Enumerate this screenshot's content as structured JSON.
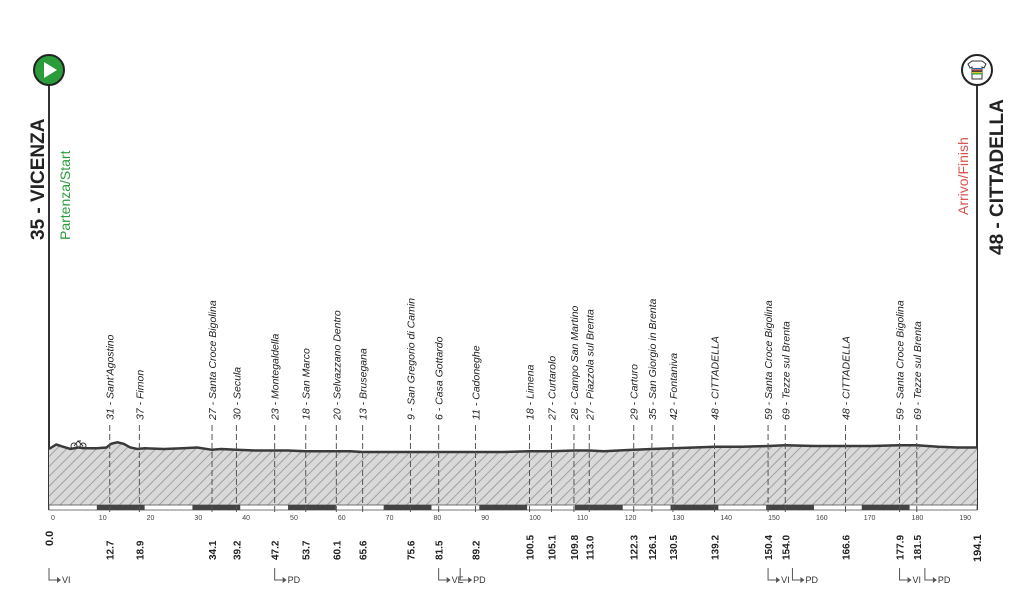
{
  "start": {
    "elevation_label": "35 - VICENZA",
    "caption": "Partenza/Start",
    "distance": "0.0",
    "color": "#2a9d3a"
  },
  "finish": {
    "elevation_label": "48 - CITTADELLA",
    "caption": "Arrivo/Finish",
    "distance": "194.1",
    "color": "#d9534f"
  },
  "chart_data": {
    "type": "area",
    "title": "",
    "xlabel": "",
    "ylabel": "",
    "xlim": [
      0,
      194.1
    ],
    "x_ticks": [
      0,
      10,
      20,
      30,
      40,
      50,
      60,
      70,
      80,
      90,
      100,
      110,
      120,
      130,
      140,
      150,
      160,
      170,
      180,
      190
    ],
    "profile": {
      "x": [
        0,
        1.5,
        3.0,
        4.5,
        6.0,
        8.0,
        10.0,
        12.0,
        13.0,
        14.3,
        15.6,
        17.0,
        18.5,
        20,
        24,
        28,
        31,
        34.1,
        36,
        39.2,
        43,
        47.2,
        50,
        53.7,
        57,
        60.1,
        63,
        65.6,
        70,
        75.6,
        80,
        85,
        89.2,
        95,
        100.5,
        105.1,
        109.8,
        113.0,
        116,
        122.3,
        126.1,
        130.5,
        135,
        139.2,
        145,
        150.4,
        154.0,
        160,
        166.6,
        172,
        177.9,
        181.5,
        186,
        190,
        194.1
      ],
      "y": [
        38,
        44,
        41,
        38,
        40,
        39,
        39,
        40,
        45,
        47,
        45,
        40,
        38,
        39,
        38,
        39,
        40,
        37,
        38,
        37,
        36,
        36,
        36,
        35,
        35,
        35,
        35,
        34,
        34,
        34,
        34,
        34,
        34,
        34,
        35,
        35,
        36,
        36,
        35,
        37,
        38,
        39,
        40,
        41,
        41,
        42,
        43,
        42,
        42,
        42,
        43,
        43,
        41,
        40,
        40
      ]
    },
    "waypoints": [
      {
        "x": 12.7,
        "label": "31 - Sant'Agostino",
        "dist": "12.7"
      },
      {
        "x": 18.9,
        "label": "37 - Fimon",
        "dist": "18.9"
      },
      {
        "x": 34.1,
        "label": "27 - Santa Croce Bigolina",
        "dist": "34.1"
      },
      {
        "x": 39.2,
        "label": "30 - Secula",
        "dist": "39.2"
      },
      {
        "x": 47.2,
        "label": "23 - Montegaldella",
        "dist": "47.2"
      },
      {
        "x": 53.7,
        "label": "18 - San Marco",
        "dist": "53.7"
      },
      {
        "x": 60.1,
        "label": "20 - Selvazzano Dentro",
        "dist": "60.1"
      },
      {
        "x": 65.6,
        "label": "13 - Brusegana",
        "dist": "65.6"
      },
      {
        "x": 75.6,
        "label": "9 - San Gregorio di Camin",
        "dist": "75.6"
      },
      {
        "x": 81.5,
        "label": "6 - Casa Gottardo",
        "dist": "81.5"
      },
      {
        "x": 89.2,
        "label": "11 - Cadoneghe",
        "dist": "89.2"
      },
      {
        "x": 100.5,
        "label": "18 - Limena",
        "dist": "100.5"
      },
      {
        "x": 105.1,
        "label": "27 - Curtarolo",
        "dist": "105.1"
      },
      {
        "x": 109.8,
        "label": "28 - Campo San Martino",
        "dist": "109.8"
      },
      {
        "x": 113.0,
        "label": "27 - Piazzola sul Brenta",
        "dist": "113.0"
      },
      {
        "x": 122.3,
        "label": "29 - Carturo",
        "dist": "122.3"
      },
      {
        "x": 126.1,
        "label": "35 - San Giorgio in Brenta",
        "dist": "126.1"
      },
      {
        "x": 130.5,
        "label": "42 - Fontaniva",
        "dist": "130.5"
      },
      {
        "x": 139.2,
        "label": "48 - CITTADELLA",
        "dist": "139.2"
      },
      {
        "x": 150.4,
        "label": "59 - Santa Croce Bigolina",
        "dist": "150.4"
      },
      {
        "x": 154.0,
        "label": "69 - Tezze sul Brenta",
        "dist": "154.0"
      },
      {
        "x": 166.6,
        "label": "48 - CITTADELLA",
        "dist": "166.6"
      },
      {
        "x": 177.9,
        "label": "59 - Santa Croce Bigolina",
        "dist": "177.9"
      },
      {
        "x": 181.5,
        "label": "69 - Tezze sul Brenta",
        "dist": "181.5"
      }
    ],
    "provinces": [
      {
        "x": 0,
        "label": "VI"
      },
      {
        "x": 47.2,
        "label": "PD"
      },
      {
        "x": 81.5,
        "label": "VE"
      },
      {
        "x": 86.0,
        "label": "PD"
      },
      {
        "x": 150.4,
        "label": "VI"
      },
      {
        "x": 155.5,
        "label": "PD"
      },
      {
        "x": 177.9,
        "label": "VI"
      },
      {
        "x": 183.2,
        "label": "PD"
      }
    ]
  },
  "colors": {
    "profile_stroke": "#3a3a3a",
    "hatch": "#9a9a9a",
    "fill": "#d9d9d9"
  },
  "icons": {
    "start": "play-triangle-icon",
    "finish": "world-champion-jersey-icon",
    "landmark": "bicycle-icon"
  }
}
